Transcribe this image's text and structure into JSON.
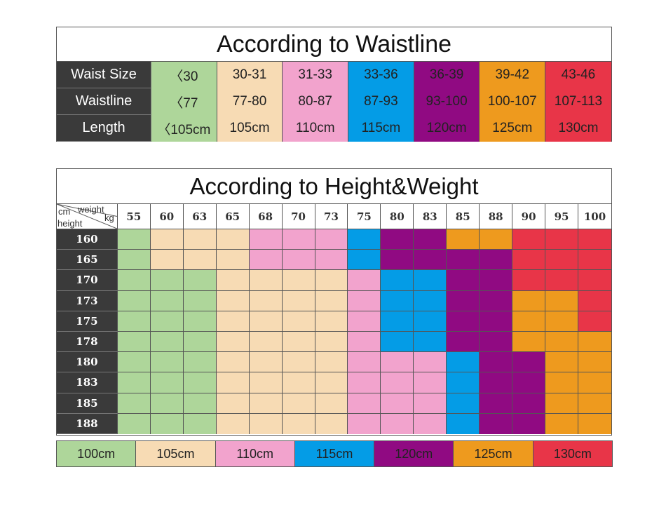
{
  "colors": {
    "green": "#aed69a",
    "beige": "#f7dbb4",
    "pink": "#f2a3cd",
    "blue": "#049ce6",
    "purple": "#900a82",
    "orange": "#ee9a1e",
    "red": "#e83548",
    "dark": "#3a3a3a"
  },
  "waistline": {
    "title": "According to Waistline",
    "rows": [
      {
        "label": "Waist Size",
        "values": [
          "〈30",
          "30-31",
          "31-33",
          "33-36",
          "36-39",
          "39-42",
          "43-46"
        ]
      },
      {
        "label": "Waistline",
        "values": [
          "〈77",
          "77-80",
          "80-87",
          "87-93",
          "93-100",
          "100-107",
          "107-113"
        ]
      },
      {
        "label": "Length",
        "values": [
          "〈105cm",
          "105cm",
          "110cm",
          "115cm",
          "120cm",
          "125cm",
          "130cm"
        ]
      }
    ],
    "column_colors": [
      "green",
      "beige",
      "pink",
      "blue",
      "purple",
      "orange",
      "red"
    ]
  },
  "height_weight": {
    "title": "According to Height&Weight",
    "corner": {
      "top_left": "cm",
      "top_right": "weight",
      "right": "kg",
      "bottom_left": "height"
    },
    "weights": [
      "55",
      "60",
      "63",
      "65",
      "68",
      "70",
      "73",
      "75",
      "80",
      "83",
      "85",
      "88",
      "90",
      "95",
      "100"
    ],
    "heights": [
      "160",
      "165",
      "170",
      "173",
      "175",
      "178",
      "180",
      "183",
      "185",
      "188"
    ],
    "grid": [
      [
        "green",
        "beige",
        "beige",
        "beige",
        "pink",
        "pink",
        "pink",
        "blue",
        "purple",
        "purple",
        "orange",
        "orange",
        "red",
        "red",
        "red"
      ],
      [
        "green",
        "beige",
        "beige",
        "beige",
        "pink",
        "pink",
        "pink",
        "blue",
        "purple",
        "purple",
        "purple",
        "purple",
        "red",
        "red",
        "red"
      ],
      [
        "green",
        "green",
        "green",
        "beige",
        "beige",
        "beige",
        "beige",
        "pink",
        "blue",
        "blue",
        "purple",
        "purple",
        "red",
        "red",
        "red"
      ],
      [
        "green",
        "green",
        "green",
        "beige",
        "beige",
        "beige",
        "beige",
        "pink",
        "blue",
        "blue",
        "purple",
        "purple",
        "orange",
        "orange",
        "red"
      ],
      [
        "green",
        "green",
        "green",
        "beige",
        "beige",
        "beige",
        "beige",
        "pink",
        "blue",
        "blue",
        "purple",
        "purple",
        "orange",
        "orange",
        "red"
      ],
      [
        "green",
        "green",
        "green",
        "beige",
        "beige",
        "beige",
        "beige",
        "pink",
        "blue",
        "blue",
        "purple",
        "purple",
        "orange",
        "orange",
        "orange"
      ],
      [
        "green",
        "green",
        "green",
        "beige",
        "beige",
        "beige",
        "beige",
        "pink",
        "pink",
        "pink",
        "blue",
        "purple",
        "purple",
        "orange",
        "orange"
      ],
      [
        "green",
        "green",
        "green",
        "beige",
        "beige",
        "beige",
        "beige",
        "pink",
        "pink",
        "pink",
        "blue",
        "purple",
        "purple",
        "orange",
        "orange"
      ],
      [
        "green",
        "green",
        "green",
        "beige",
        "beige",
        "beige",
        "beige",
        "pink",
        "pink",
        "pink",
        "blue",
        "purple",
        "purple",
        "orange",
        "orange"
      ],
      [
        "green",
        "green",
        "green",
        "beige",
        "beige",
        "beige",
        "beige",
        "pink",
        "pink",
        "pink",
        "blue",
        "purple",
        "purple",
        "orange",
        "orange"
      ]
    ]
  },
  "legend": [
    {
      "label": "100cm",
      "color": "green"
    },
    {
      "label": "105cm",
      "color": "beige"
    },
    {
      "label": "110cm",
      "color": "pink"
    },
    {
      "label": "115cm",
      "color": "blue"
    },
    {
      "label": "120cm",
      "color": "purple"
    },
    {
      "label": "125cm",
      "color": "orange"
    },
    {
      "label": "130cm",
      "color": "red"
    }
  ]
}
